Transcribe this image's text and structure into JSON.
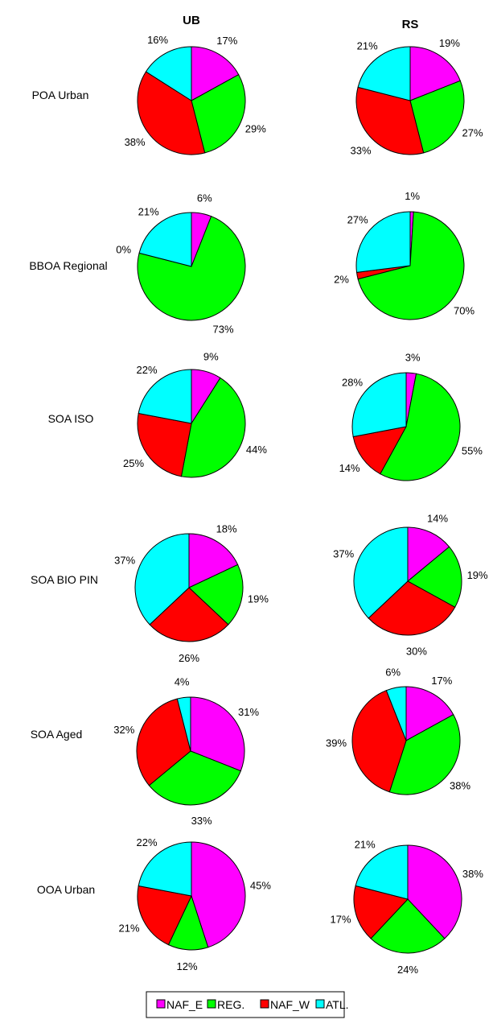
{
  "colors": {
    "NAF_E": "#ff00ff",
    "REG.": "#00ff00",
    "NAF_W": "#ff0000",
    "ATL.": "#00ffff"
  },
  "chart_data": {
    "type": "pie",
    "columns": [
      "UB",
      "RS"
    ],
    "rows": [
      {
        "label": "POA Urban",
        "UB": {
          "values": [
            17,
            29,
            38,
            16
          ],
          "labels": [
            "17%",
            "29%",
            "38%",
            "16%"
          ]
        },
        "RS": {
          "values": [
            19,
            27,
            33,
            21
          ],
          "labels": [
            "19%",
            "27%",
            "33%",
            "21%"
          ]
        }
      },
      {
        "label": "BBOA Regional",
        "UB": {
          "values": [
            6,
            73,
            0,
            21
          ],
          "labels": [
            "6%",
            "73%",
            "0%",
            "21%"
          ]
        },
        "RS": {
          "values": [
            1,
            70,
            2,
            27
          ],
          "labels": [
            "1%",
            "70%",
            "2%",
            "27%"
          ]
        }
      },
      {
        "label": "SOA ISO",
        "UB": {
          "values": [
            9,
            44,
            25,
            22
          ],
          "labels": [
            "9%",
            "44%",
            "25%",
            "22%"
          ]
        },
        "RS": {
          "values": [
            3,
            55,
            14,
            28
          ],
          "labels": [
            "3%",
            "55%",
            "14%",
            "28%"
          ]
        }
      },
      {
        "label": "SOA BIO PIN",
        "UB": {
          "values": [
            18,
            19,
            26,
            37
          ],
          "labels": [
            "18%",
            "19%",
            "26%",
            "37%"
          ]
        },
        "RS": {
          "values": [
            14,
            19,
            30,
            37
          ],
          "labels": [
            "14%",
            "19%",
            "30%",
            "37%"
          ]
        }
      },
      {
        "label": "SOA Aged",
        "UB": {
          "values": [
            31,
            33,
            32,
            4
          ],
          "labels": [
            "31%",
            "33%",
            "32%",
            "4%"
          ]
        },
        "RS": {
          "values": [
            17,
            38,
            39,
            6
          ],
          "labels": [
            "17%",
            "38%",
            "39%",
            "6%"
          ]
        }
      },
      {
        "label": "OOA Urban",
        "UB": {
          "values": [
            45,
            12,
            21,
            22
          ],
          "labels": [
            "45%",
            "12%",
            "21%",
            "22%"
          ]
        },
        "RS": {
          "values": [
            38,
            24,
            17,
            21
          ],
          "labels": [
            "38%",
            "24%",
            "17%",
            "21%"
          ]
        }
      }
    ],
    "legend": [
      "NAF_E",
      "REG.",
      "NAF_W",
      "ATL."
    ],
    "legend_position": "bottom-center"
  }
}
